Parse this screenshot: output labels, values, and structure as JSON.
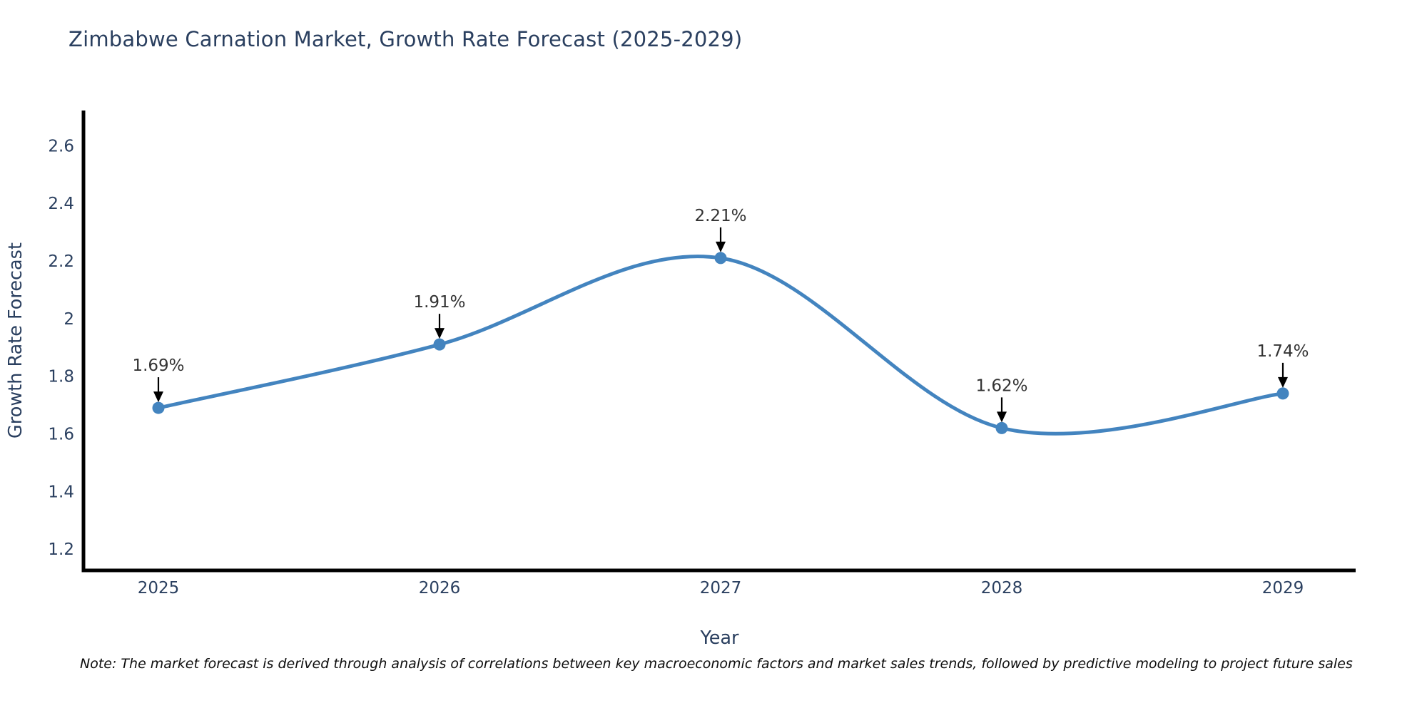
{
  "title": "Zimbabwe Carnation Market, Growth Rate Forecast (2025-2029)",
  "note": "Note: The market forecast is derived through analysis of correlations between key macroeconomic factors and market sales trends, followed by predictive modeling to project future sales",
  "chart_data": {
    "type": "line",
    "title": "Zimbabwe Carnation Market, Growth Rate Forecast (2025-2029)",
    "xlabel": "Year",
    "ylabel": "Growth Rate Forecast",
    "x": [
      2025,
      2026,
      2027,
      2028,
      2029
    ],
    "values": [
      1.69,
      1.91,
      2.21,
      1.62,
      1.74
    ],
    "point_labels": [
      "1.69%",
      "1.91%",
      "2.21%",
      "1.62%",
      "1.74%"
    ],
    "y_ticks": [
      1.2,
      1.4,
      1.6,
      1.8,
      2,
      2.2,
      2.4,
      2.6
    ],
    "ylim": [
      1.126,
      2.722
    ],
    "line_shape": "spline",
    "grid": false,
    "legend": "none",
    "colors": {
      "line": "#4384bf",
      "marker": "#4384bf",
      "axis": "#000000",
      "tick_text": "#2a3f5f",
      "annotation_text": "#333333",
      "annotation_arrow": "#000000",
      "title_text": "#2a3f5f",
      "background": "#ffffff"
    }
  }
}
